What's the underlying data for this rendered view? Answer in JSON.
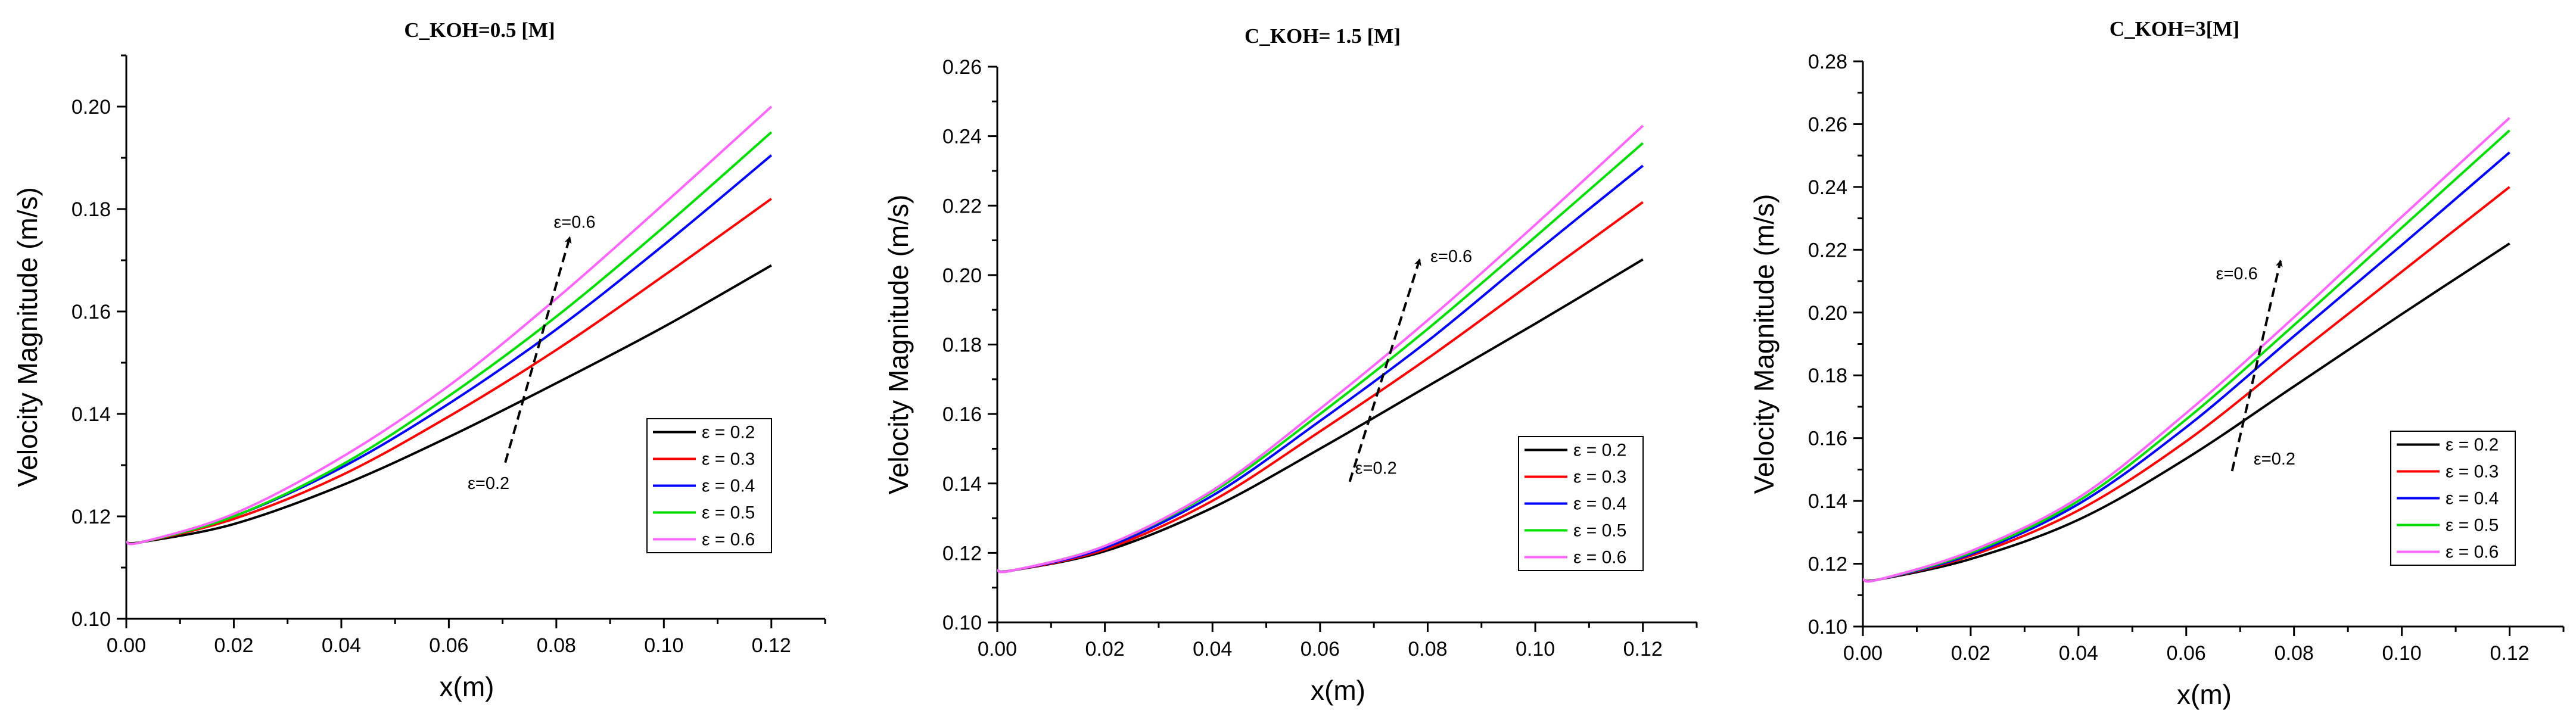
{
  "chart_data": [
    {
      "type": "line",
      "title": "C_KOH=0.5 [M]",
      "xlabel": "x(m)",
      "ylabel": "Velocity Magnitude (m/s)",
      "xlim": [
        0.0,
        0.13
      ],
      "ylim": [
        0.1,
        0.21
      ],
      "xticks": [
        0.0,
        0.02,
        0.04,
        0.06,
        0.08,
        0.1,
        0.12
      ],
      "xtick_labels": [
        "0.00",
        "0.02",
        "0.04",
        "0.06",
        "0.08",
        "0.10",
        "0.12"
      ],
      "yticks": [
        0.1,
        0.12,
        0.14,
        0.16,
        0.18,
        0.2
      ],
      "ytick_labels": [
        "0.10",
        "0.12",
        "0.14",
        "0.16",
        "0.18",
        "0.20"
      ],
      "legend_position": "center-right",
      "x": [
        0.0,
        0.003,
        0.02,
        0.04,
        0.06,
        0.08,
        0.1,
        0.12
      ],
      "series": [
        {
          "name": "ε = 0.2",
          "color": "#000000",
          "values": [
            0.115,
            0.115,
            0.1185,
            0.126,
            0.1355,
            0.146,
            0.157,
            0.169
          ]
        },
        {
          "name": "ε = 0.3",
          "color": "#ff0000",
          "values": [
            0.115,
            0.115,
            0.1195,
            0.128,
            0.1395,
            0.1525,
            0.167,
            0.182
          ]
        },
        {
          "name": "ε = 0.4",
          "color": "#0000ff",
          "values": [
            0.115,
            0.115,
            0.12,
            0.1295,
            0.142,
            0.1565,
            0.173,
            0.1905
          ]
        },
        {
          "name": "ε = 0.5",
          "color": "#00dd00",
          "values": [
            0.115,
            0.115,
            0.12,
            0.13,
            0.1435,
            0.159,
            0.1765,
            0.195
          ]
        },
        {
          "name": "ε = 0.6",
          "color": "#ff66ff",
          "values": [
            0.115,
            0.115,
            0.1205,
            0.1315,
            0.1455,
            0.1625,
            0.181,
            0.2
          ]
        }
      ],
      "annotations": [
        {
          "text": "ε=0.6",
          "x": 0.0795,
          "y": 0.1775
        },
        {
          "text": "ε=0.2",
          "x": 0.0635,
          "y": 0.1265
        }
      ],
      "arrow": {
        "from": [
          0.0705,
          0.1305
        ],
        "to": [
          0.0825,
          0.1745
        ]
      }
    },
    {
      "type": "line",
      "title": "C_KOH= 1.5 [M]",
      "xlabel": "x(m)",
      "ylabel": "Velocity Magnitude (m/s)",
      "xlim": [
        0.0,
        0.13
      ],
      "ylim": [
        0.1,
        0.26
      ],
      "xticks": [
        0.0,
        0.02,
        0.04,
        0.06,
        0.08,
        0.1,
        0.12
      ],
      "xtick_labels": [
        "0.00",
        "0.02",
        "0.04",
        "0.06",
        "0.08",
        "0.10",
        "0.12"
      ],
      "yticks": [
        0.1,
        0.12,
        0.14,
        0.16,
        0.18,
        0.2,
        0.22,
        0.24,
        0.26
      ],
      "ytick_labels": [
        "0.10",
        "0.12",
        "0.14",
        "0.16",
        "0.18",
        "0.20",
        "0.22",
        "0.24",
        "0.26"
      ],
      "legend_position": "center-right",
      "x": [
        0.0,
        0.003,
        0.02,
        0.04,
        0.06,
        0.08,
        0.1,
        0.12
      ],
      "series": [
        {
          "name": "ε = 0.2",
          "color": "#000000",
          "values": [
            0.115,
            0.115,
            0.1205,
            0.133,
            0.15,
            0.168,
            0.186,
            0.2045
          ]
        },
        {
          "name": "ε = 0.3",
          "color": "#ff0000",
          "values": [
            0.115,
            0.115,
            0.121,
            0.135,
            0.155,
            0.176,
            0.1985,
            0.221
          ]
        },
        {
          "name": "ε = 0.4",
          "color": "#0000ff",
          "values": [
            0.115,
            0.115,
            0.1215,
            0.1365,
            0.158,
            0.181,
            0.2065,
            0.2315
          ]
        },
        {
          "name": "ε = 0.5",
          "color": "#00dd00",
          "values": [
            0.115,
            0.115,
            0.122,
            0.1375,
            0.16,
            0.1845,
            0.211,
            0.238
          ]
        },
        {
          "name": "ε = 0.6",
          "color": "#ff66ff",
          "values": [
            0.115,
            0.115,
            0.122,
            0.138,
            0.1615,
            0.187,
            0.2145,
            0.243
          ]
        }
      ],
      "annotations": [
        {
          "text": "ε=0.6",
          "x": 0.0805,
          "y": 0.2055
        },
        {
          "text": "ε=0.2",
          "x": 0.0665,
          "y": 0.1445
        }
      ],
      "arrow": {
        "from": [
          0.0655,
          0.1405
        ],
        "to": [
          0.0785,
          0.2045
        ]
      }
    },
    {
      "type": "line",
      "title": "C_KOH=3[M]",
      "xlabel": "x(m)",
      "ylabel": "Velocity Magnitude (m/s)",
      "xlim": [
        0.0,
        0.13
      ],
      "ylim": [
        0.1,
        0.28
      ],
      "xticks": [
        0.0,
        0.02,
        0.04,
        0.06,
        0.08,
        0.1,
        0.12
      ],
      "xtick_labels": [
        "0.00",
        "0.02",
        "0.04",
        "0.06",
        "0.08",
        "0.10",
        "0.12"
      ],
      "yticks": [
        0.1,
        0.12,
        0.14,
        0.16,
        0.18,
        0.2,
        0.22,
        0.24,
        0.26,
        0.28
      ],
      "ytick_labels": [
        "0.10",
        "0.12",
        "0.14",
        "0.16",
        "0.18",
        "0.20",
        "0.22",
        "0.24",
        "0.26",
        "0.28"
      ],
      "legend_position": "center-right",
      "x": [
        0.0,
        0.003,
        0.02,
        0.04,
        0.06,
        0.08,
        0.1,
        0.12
      ],
      "series": [
        {
          "name": "ε = 0.2",
          "color": "#000000",
          "values": [
            0.115,
            0.115,
            0.1215,
            0.134,
            0.1535,
            0.1765,
            0.1995,
            0.222
          ]
        },
        {
          "name": "ε = 0.3",
          "color": "#ff0000",
          "values": [
            0.115,
            0.115,
            0.1225,
            0.137,
            0.159,
            0.186,
            0.213,
            0.24
          ]
        },
        {
          "name": "ε = 0.4",
          "color": "#0000ff",
          "values": [
            0.115,
            0.115,
            0.123,
            0.139,
            0.1635,
            0.1925,
            0.2215,
            0.251
          ]
        },
        {
          "name": "ε = 0.5",
          "color": "#00dd00",
          "values": [
            0.115,
            0.115,
            0.1235,
            0.14,
            0.166,
            0.196,
            0.227,
            0.258
          ]
        },
        {
          "name": "ε = 0.6",
          "color": "#ff66ff",
          "values": [
            0.115,
            0.115,
            0.124,
            0.141,
            0.168,
            0.1985,
            0.2305,
            0.262
          ]
        }
      ],
      "annotations": [
        {
          "text": "ε=0.6",
          "x": 0.0655,
          "y": 0.2125
        },
        {
          "text": "ε=0.2",
          "x": 0.0725,
          "y": 0.1535
        }
      ],
      "arrow": {
        "from": [
          0.0685,
          0.1495
        ],
        "to": [
          0.0775,
          0.2165
        ]
      }
    }
  ]
}
